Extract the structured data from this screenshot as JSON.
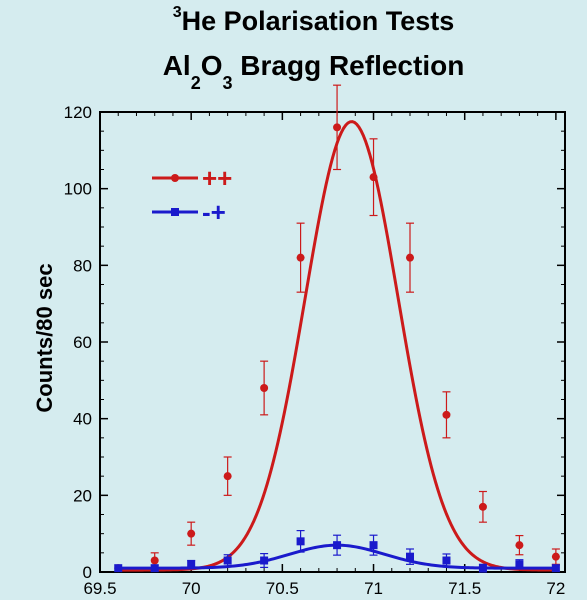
{
  "title": {
    "sup": "3",
    "line1": "He Polarisation Tests",
    "line2_a": "Al",
    "line2_sub1": "2",
    "line2_b": "O",
    "line2_sub2": "3",
    "line2_c": " Bragg Reflection"
  },
  "colors": {
    "pp": "#cc1a1a",
    "mp": "#1a1acc",
    "background": "#d5ecef"
  },
  "chart_data": {
    "type": "scatter",
    "title": "³He Polarisation Tests Al₂O₃ Bragg Reflection",
    "xlabel": "",
    "ylabel": "Counts/80 sec",
    "xlim": [
      69.5,
      72.05
    ],
    "ylim": [
      0,
      120
    ],
    "xticks": [
      69.5,
      70,
      70.5,
      71,
      71.5,
      72
    ],
    "yticks": [
      0,
      20,
      40,
      60,
      80,
      100,
      120
    ],
    "legend_position": "top-left",
    "series": [
      {
        "name": "++",
        "marker": "circle",
        "x": [
          69.6,
          69.8,
          70.0,
          70.2,
          70.4,
          70.6,
          70.8,
          71.0,
          71.2,
          71.4,
          71.6,
          71.8,
          72.0
        ],
        "y": [
          1,
          3,
          10,
          25,
          48,
          82,
          116,
          103,
          82,
          41,
          17,
          7,
          4
        ],
        "err": [
          0,
          2,
          3,
          5,
          7,
          9,
          11,
          10,
          9,
          6,
          4,
          2.5,
          2
        ],
        "fit": {
          "amplitude": 117,
          "center": 70.88,
          "sigma": 0.255,
          "offset": 0.5
        }
      },
      {
        "name": "-+",
        "marker": "square",
        "x": [
          69.6,
          69.8,
          70.0,
          70.2,
          70.4,
          70.6,
          70.8,
          71.0,
          71.2,
          71.4,
          71.6,
          71.8,
          72.0
        ],
        "y": [
          1,
          1,
          2,
          3,
          3,
          8,
          7,
          7,
          4,
          3,
          1,
          2,
          1
        ],
        "err": [
          0,
          0.8,
          1,
          1.5,
          1.8,
          2.8,
          2.6,
          2.6,
          2,
          1.7,
          1,
          1.2,
          0.8
        ],
        "fit": {
          "amplitude": 6,
          "center": 70.8,
          "sigma": 0.26,
          "offset": 1
        }
      }
    ]
  }
}
